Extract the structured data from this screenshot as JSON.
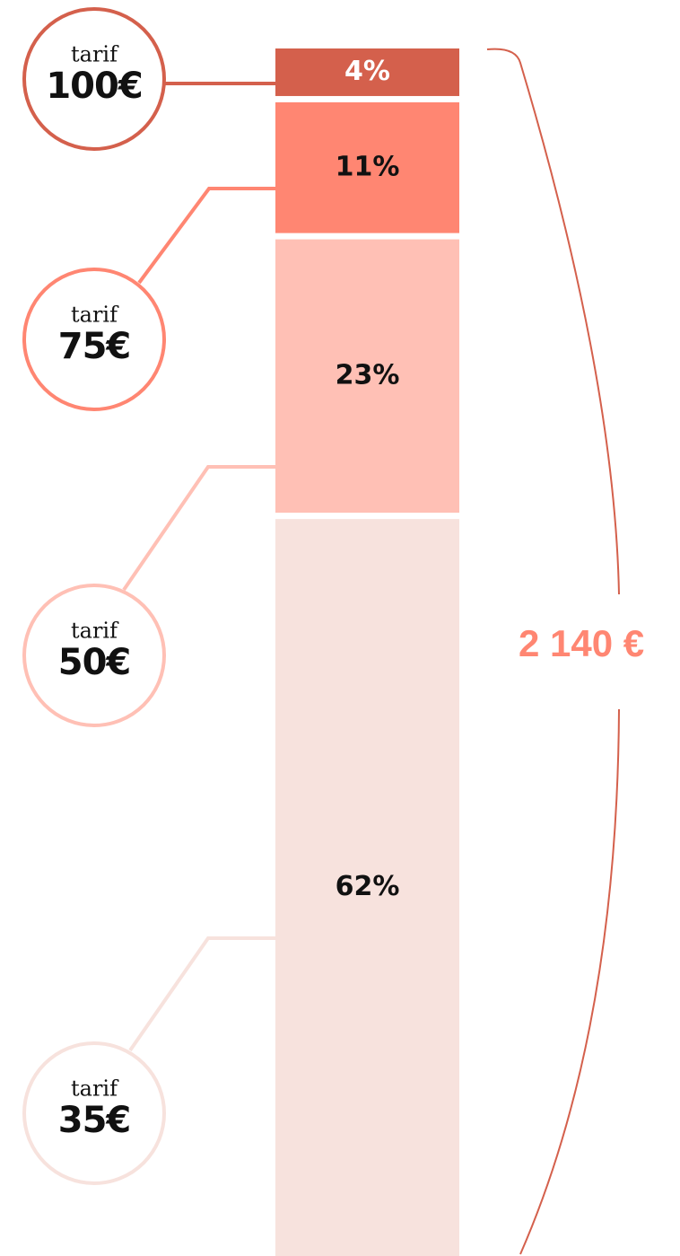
{
  "chart_data": {
    "type": "stacked_bar",
    "label_prefix": "tarif",
    "total_label": "2 140 €",
    "series": [
      {
        "name": "100€",
        "color": "#d4604c",
        "values": [
          4
        ],
        "value_labels": [
          "4%"
        ]
      },
      {
        "name": "75€",
        "color": "#ff8672",
        "values": [
          11
        ],
        "value_labels": [
          "11%"
        ]
      },
      {
        "name": "50€",
        "color": "#ffc0b5",
        "values": [
          23
        ],
        "value_labels": [
          "23%"
        ]
      },
      {
        "name": "35€",
        "color": "#f7e2dd",
        "values": [
          62
        ],
        "value_labels": [
          "62%"
        ]
      }
    ]
  }
}
